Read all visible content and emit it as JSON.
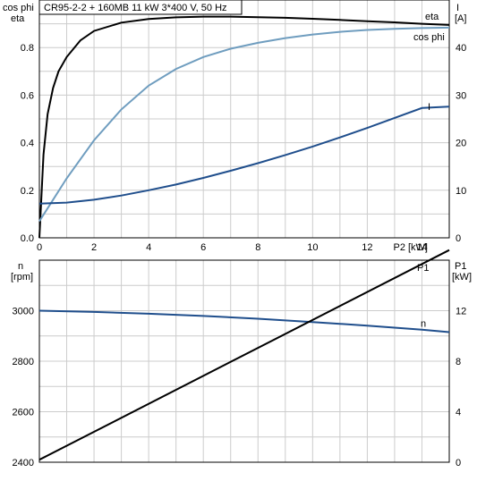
{
  "chart_data": [
    {
      "type": "line",
      "title": "CR95-2-2 + 160MB   11 kW   3*400 V, 50 Hz",
      "xlabel": "P2 [kW]",
      "ylabel_left_line1": "cos phi",
      "ylabel_left_line2": "eta",
      "ylabel_right_line1": "I",
      "ylabel_right_line2": "[A]",
      "xlim": [
        0,
        15
      ],
      "ylim_left": [
        0,
        1
      ],
      "ylim_right": [
        0,
        50
      ],
      "x_ticks": [
        0,
        2,
        4,
        6,
        8,
        10,
        12,
        14
      ],
      "y_ticks_left": [
        "0.0",
        "0.2",
        "0.4",
        "0.6",
        "0.8"
      ],
      "y_ticks_left_values": [
        0,
        0.2,
        0.4,
        0.6,
        0.8
      ],
      "y_ticks_right": [
        0,
        10,
        20,
        30,
        40
      ],
      "grid": true,
      "series": [
        {
          "name": "eta",
          "axis": "left",
          "color": "#000000",
          "x": [
            0,
            0.15,
            0.3,
            0.5,
            0.7,
            1.0,
            1.5,
            2,
            3,
            4,
            5,
            6,
            7,
            8,
            9,
            10,
            11,
            12,
            13,
            14,
            15
          ],
          "y": [
            0,
            0.35,
            0.52,
            0.63,
            0.7,
            0.76,
            0.83,
            0.87,
            0.905,
            0.92,
            0.927,
            0.93,
            0.93,
            0.928,
            0.925,
            0.921,
            0.916,
            0.911,
            0.906,
            0.9,
            0.895
          ]
        },
        {
          "name": "cos phi",
          "axis": "left",
          "color": "#6f9dbf",
          "x": [
            0,
            0.5,
            1,
            1.5,
            2,
            3,
            4,
            5,
            6,
            7,
            8,
            9,
            10,
            11,
            12,
            13,
            14,
            15
          ],
          "y": [
            0.07,
            0.16,
            0.25,
            0.33,
            0.41,
            0.54,
            0.64,
            0.71,
            0.76,
            0.795,
            0.82,
            0.84,
            0.855,
            0.866,
            0.874,
            0.879,
            0.882,
            0.884
          ]
        },
        {
          "name": "I",
          "axis": "right",
          "color": "#1f4e8c",
          "x": [
            0,
            1,
            2,
            3,
            4,
            5,
            6,
            7,
            8,
            9,
            10,
            11,
            12,
            13,
            14,
            15
          ],
          "y": [
            7.2,
            7.4,
            8.0,
            8.9,
            10.0,
            11.2,
            12.6,
            14.1,
            15.7,
            17.4,
            19.2,
            21.1,
            23.1,
            25.2,
            27.3,
            27.6
          ]
        }
      ]
    },
    {
      "type": "line",
      "xlim": [
        0,
        15
      ],
      "ylabel_left_line1": "n",
      "ylabel_left_line2": "[rpm]",
      "ylabel_right_line1": "P1",
      "ylabel_right_line2": "[kW]",
      "ylim_left": [
        2400,
        3200
      ],
      "ylim_right": [
        0,
        16
      ],
      "y_ticks_left": [
        2400,
        2600,
        2800,
        3000
      ],
      "y_ticks_right": [
        0,
        4,
        8,
        12
      ],
      "grid": true,
      "series": [
        {
          "name": "n",
          "axis": "left",
          "color": "#1f4e8c",
          "x": [
            0,
            2,
            4,
            6,
            8,
            10,
            12,
            14,
            15
          ],
          "y": [
            3000,
            2995,
            2988,
            2979,
            2968,
            2955,
            2941,
            2925,
            2915
          ]
        },
        {
          "name": "P1",
          "axis": "right",
          "color": "#000000",
          "x": [
            0,
            15
          ],
          "y": [
            0.2,
            16.8
          ]
        }
      ]
    }
  ]
}
